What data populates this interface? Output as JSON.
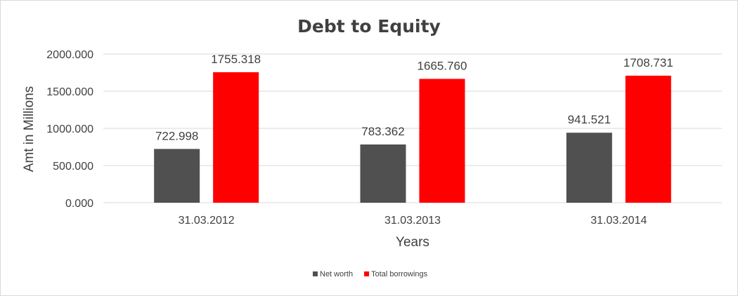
{
  "chart_data": {
    "type": "bar",
    "title": "Debt to Equity",
    "xlabel": "Years",
    "ylabel": "Amt in Millions",
    "categories": [
      "31.03.2012",
      "31.03.2013",
      "31.03.2014"
    ],
    "series": [
      {
        "name": "Net worth",
        "color": "#505050",
        "values": [
          722.998,
          783.362,
          941.521
        ],
        "labels": [
          "722.998",
          "783.362",
          "941.521"
        ]
      },
      {
        "name": "Total borrowings",
        "color": "#ff0000",
        "values": [
          1755.318,
          1665.76,
          1708.731
        ],
        "labels": [
          "1755.318",
          "1665.760",
          "1708.731"
        ]
      }
    ],
    "ylim": [
      0,
      2000
    ],
    "yticks": [
      0,
      500,
      1000,
      1500,
      2000
    ],
    "ytick_labels": [
      "0.000",
      "500.000",
      "1000.000",
      "1500.000",
      "2000.000"
    ],
    "grid": true,
    "legend_position": "bottom"
  }
}
